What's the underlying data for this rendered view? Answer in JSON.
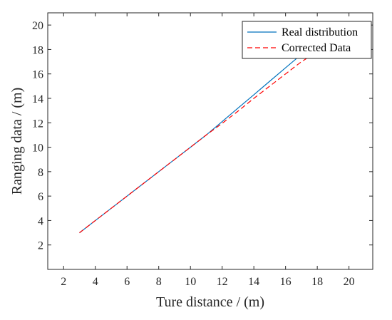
{
  "chart_data": {
    "type": "line",
    "xlabel": "Ture distance / (m)",
    "ylabel": "Ranging data / (m)",
    "xlim": [
      1,
      21.5
    ],
    "ylim": [
      0,
      21.0
    ],
    "x_ticks": [
      2,
      4,
      6,
      8,
      10,
      12,
      14,
      16,
      18,
      20
    ],
    "y_ticks": [
      2,
      4,
      6,
      8,
      10,
      12,
      14,
      16,
      18,
      20
    ],
    "grid": false,
    "legend_position": "top-right",
    "series": [
      {
        "name": "Real distribution",
        "color": "#0072BD",
        "dash": "solid",
        "x": [
          3,
          5,
          7,
          9,
          10,
          11,
          12,
          13,
          14,
          15,
          16,
          17,
          17.3
        ],
        "y": [
          3,
          5,
          7,
          9,
          10,
          11,
          12.1,
          13.2,
          14.3,
          15.4,
          16.5,
          17.6,
          17.9
        ]
      },
      {
        "name": "Corrected Data",
        "color": "#FF0000",
        "dash": "dashed",
        "x": [
          3,
          5,
          7,
          9,
          10,
          11,
          12,
          13,
          14,
          15,
          16,
          17,
          17.5
        ],
        "y": [
          3,
          5,
          7,
          9,
          10,
          11,
          11.95,
          12.95,
          14.0,
          15.0,
          16.0,
          17.0,
          17.4
        ]
      }
    ]
  }
}
